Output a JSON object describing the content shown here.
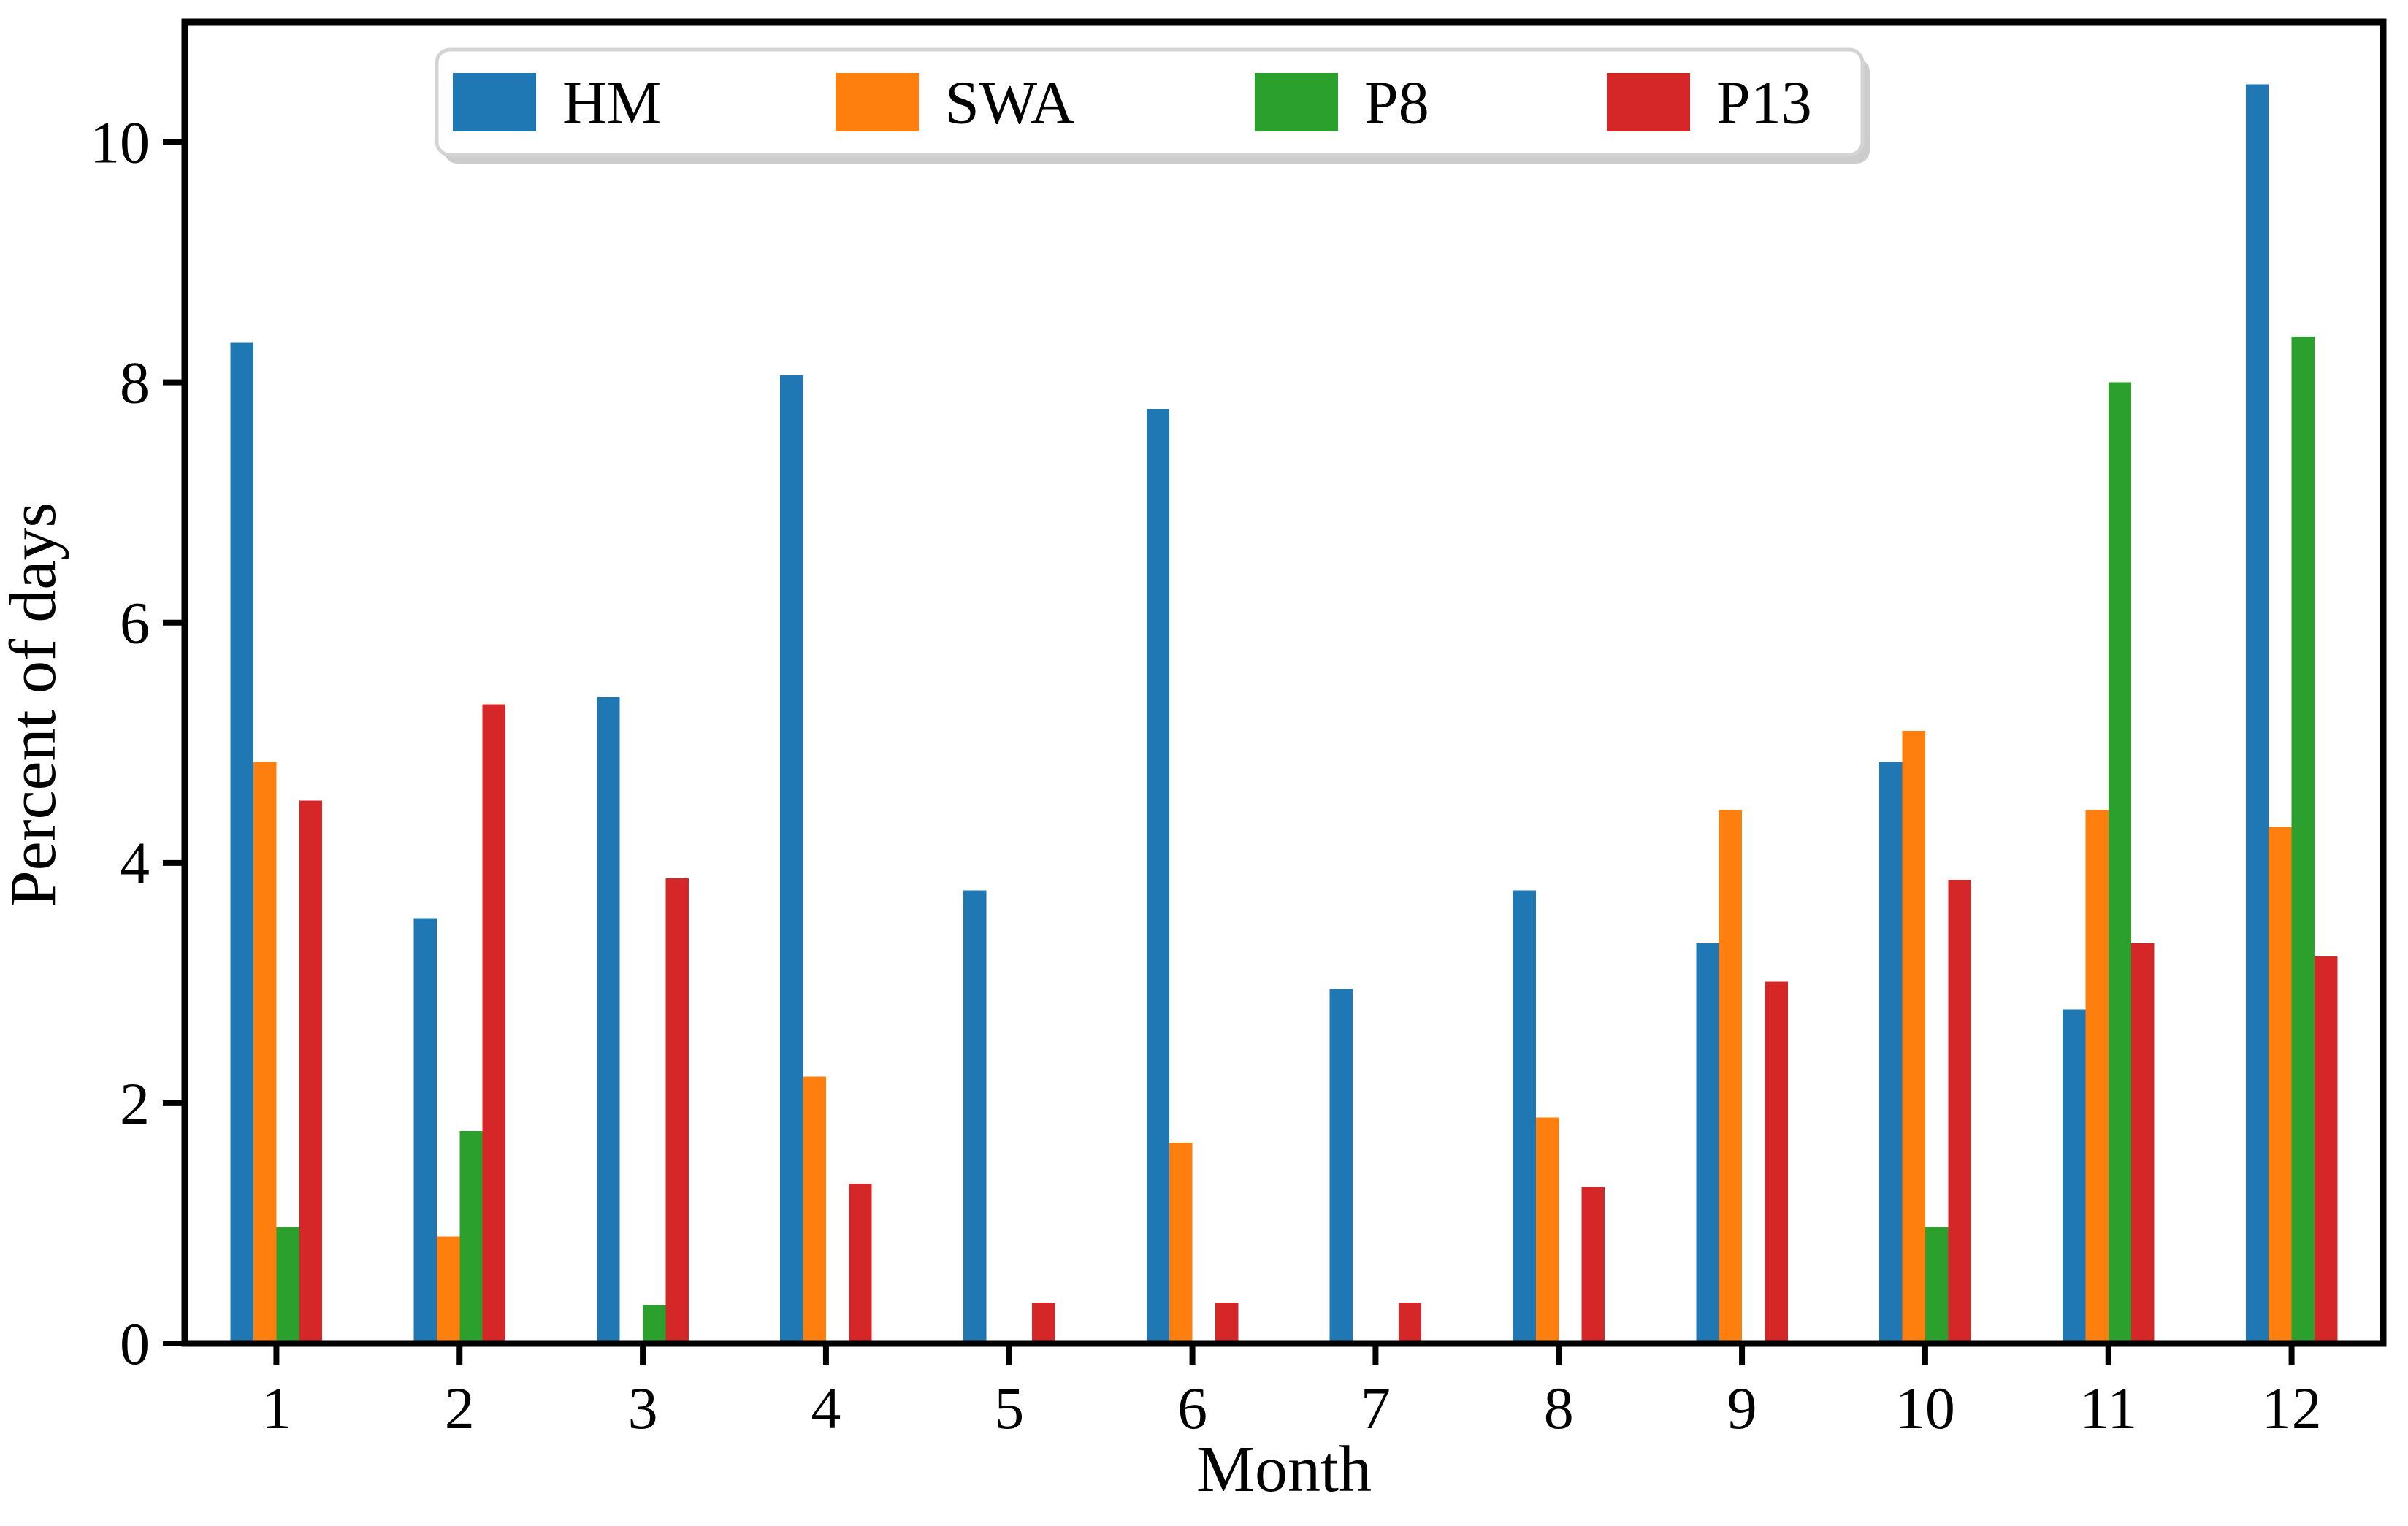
{
  "chart_data": {
    "type": "bar",
    "title": "",
    "xlabel": "Month",
    "ylabel": "Percent of days",
    "categories": [
      "1",
      "2",
      "3",
      "4",
      "5",
      "6",
      "7",
      "8",
      "9",
      "10",
      "11",
      "12"
    ],
    "series": [
      {
        "name": "HM",
        "color": "#1f77b4",
        "values": [
          8.33,
          3.54,
          5.38,
          8.06,
          3.77,
          7.78,
          2.95,
          3.77,
          3.33,
          4.84,
          2.78,
          10.48
        ]
      },
      {
        "name": "SWA",
        "color": "#ff7f0e",
        "values": [
          4.84,
          0.89,
          0,
          2.22,
          0,
          1.67,
          0,
          1.88,
          4.44,
          5.1,
          4.44,
          4.3
        ]
      },
      {
        "name": "P8",
        "color": "#2ca02c",
        "values": [
          0.97,
          1.77,
          0.32,
          0,
          0,
          0,
          0,
          0,
          0,
          0.97,
          8.0,
          8.38
        ]
      },
      {
        "name": "P13",
        "color": "#d62728",
        "values": [
          4.52,
          5.32,
          3.87,
          1.33,
          0.34,
          0.34,
          0.34,
          1.3,
          3.01,
          3.86,
          3.33,
          3.22
        ]
      }
    ],
    "y_ticks": [
      0,
      2,
      4,
      6,
      8,
      10
    ],
    "ylim": [
      0,
      11
    ],
    "xlim": [
      0.5,
      12.5
    ],
    "bar_group_width_fraction": 0.5,
    "grid": false,
    "legend_position": "upper-left-inside",
    "spine_color": "#000000",
    "background_color": "#ffffff",
    "legend_frame_color": "#d4d4d4",
    "legend_shadow_color": "#cccccc"
  }
}
